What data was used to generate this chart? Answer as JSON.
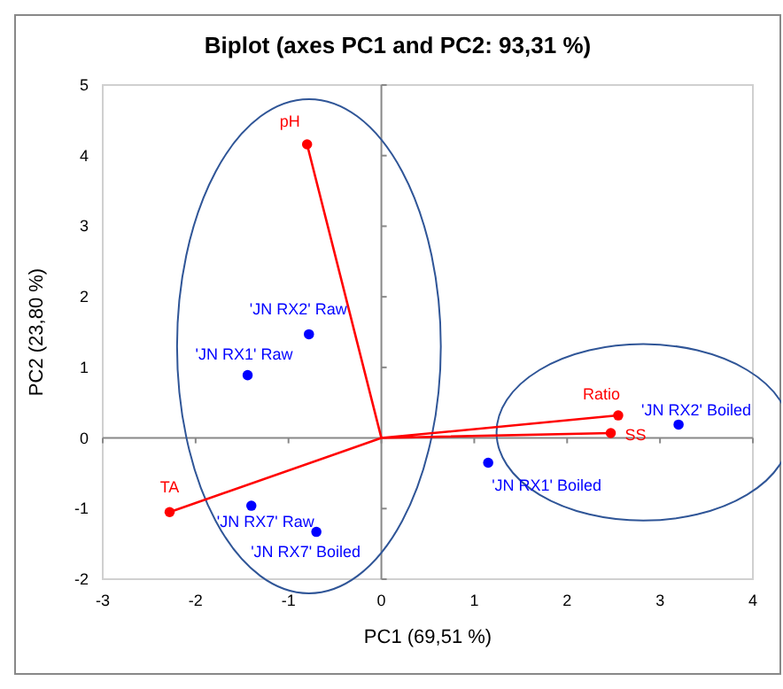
{
  "chart_data": {
    "type": "scatter",
    "title": "Biplot (axes PC1 and PC2: 93,31 %)",
    "xlabel": "PC1 (69,51 %)",
    "ylabel": "PC2 (23,80 %)",
    "xlim": [
      -3,
      4
    ],
    "xticks": [
      -3,
      -2,
      -1,
      0,
      1,
      2,
      3,
      4
    ],
    "ylim": [
      -2,
      5
    ],
    "yticks": [
      -2,
      -1,
      0,
      1,
      2,
      3,
      4,
      5
    ],
    "marker": "circle",
    "series": [
      {
        "type": "line",
        "color": "#ff0000",
        "x": [
          -0.8,
          0,
          -2.28,
          null,
          2.55,
          0,
          2.47
        ],
        "values": [
          4.16,
          0,
          -1.05,
          null,
          0.32,
          0,
          0.07
        ],
        "marker": "none"
      },
      {
        "color": "#ff0000",
        "x": [
          -0.8,
          -2.28,
          2.55,
          2.47
        ],
        "values": [
          4.16,
          -1.05,
          0.32,
          0.07
        ]
      },
      {
        "color": "#0000ff",
        "x": [
          -0.78,
          -1.44,
          -1.4,
          -0.7,
          1.15,
          3.2
        ],
        "values": [
          1.47,
          0.89,
          -0.96,
          -1.33,
          -0.35,
          0.19
        ]
      }
    ],
    "annotations": [
      {
        "text": "pH",
        "x": -0.8,
        "y": 4.16
      },
      {
        "text": "TA",
        "x": -2.28,
        "y": -1.05
      },
      {
        "text": "Ratio",
        "x": 2.55,
        "y": 0.32
      },
      {
        "text": "SS",
        "x": 2.47,
        "y": 0.07
      },
      {
        "text": "'JN RX2' Raw",
        "x": -0.78,
        "y": 1.47
      },
      {
        "text": "'JN RX1' Raw",
        "x": -1.44,
        "y": 0.89
      },
      {
        "text": "'JN RX7' Raw",
        "x": -1.4,
        "y": -0.96
      },
      {
        "text": "'JN RX7' Boiled",
        "x": -0.7,
        "y": -1.33
      },
      {
        "text": "'JN RX1' Boiled",
        "x": 1.15,
        "y": -0.35
      },
      {
        "text": "'JN RX2' Boiled",
        "x": 3.2,
        "y": 0.19
      }
    ]
  }
}
